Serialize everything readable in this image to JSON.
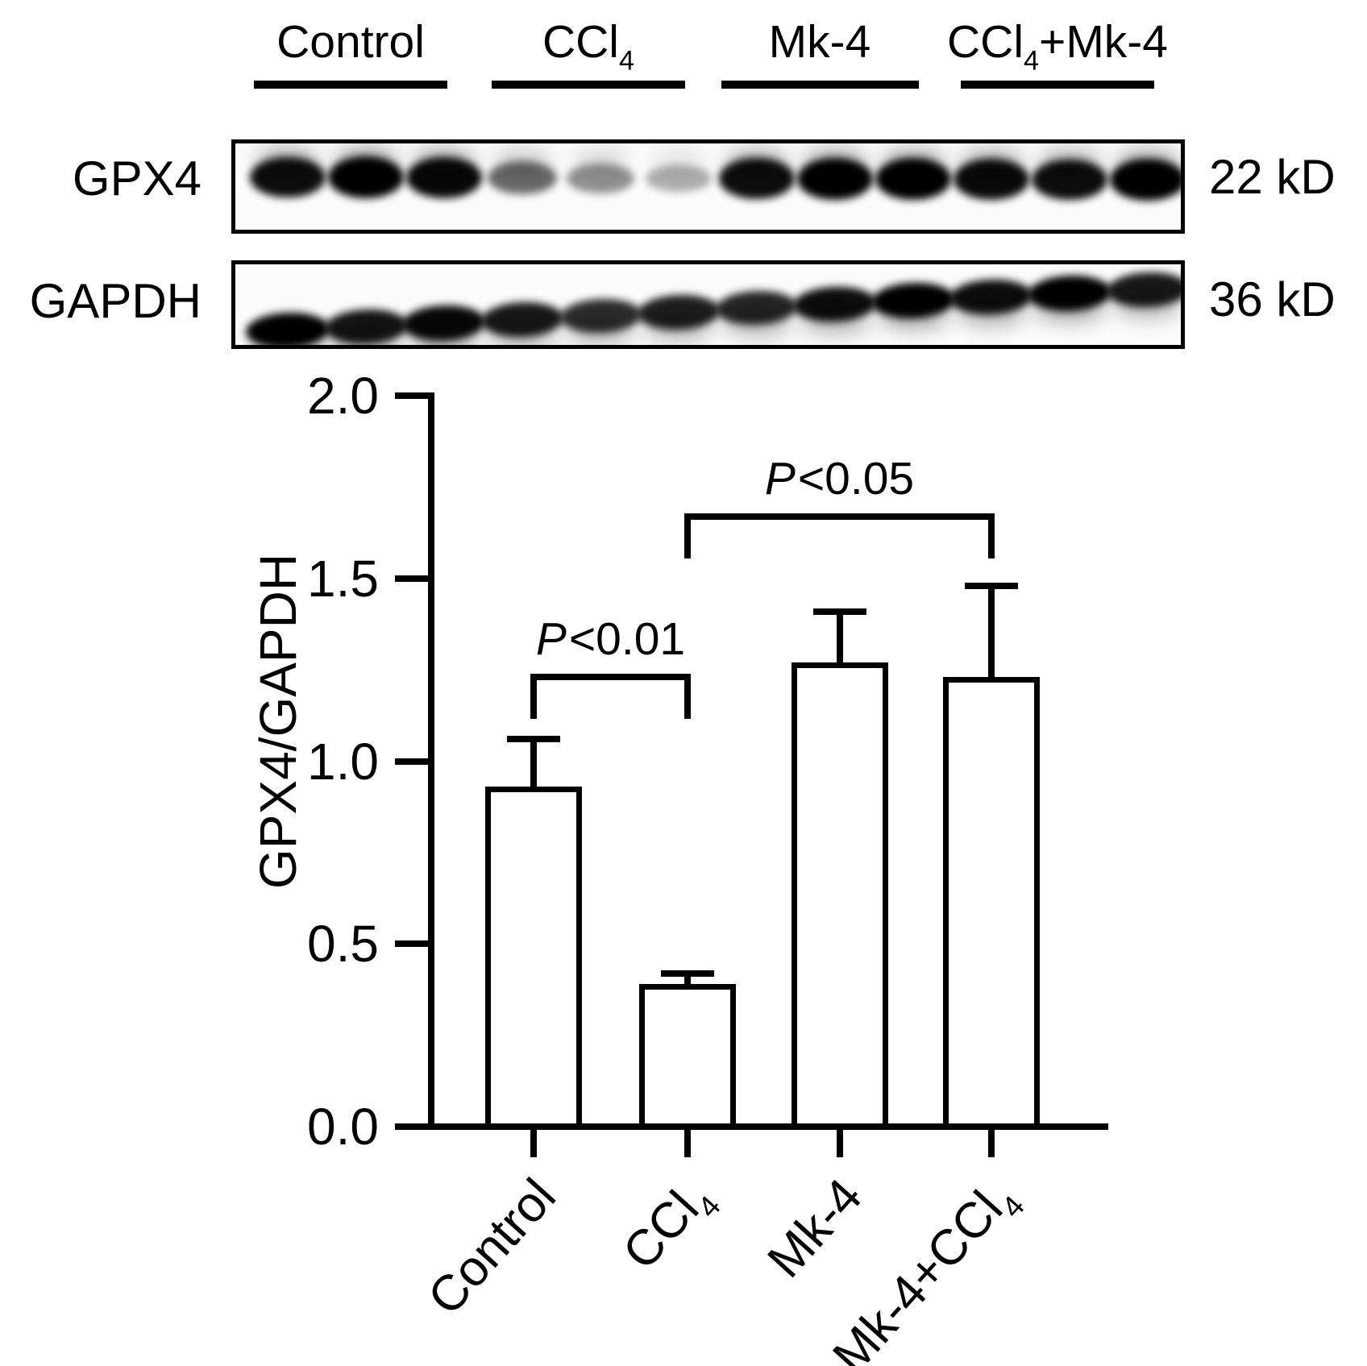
{
  "figure_header": {
    "groups": [
      {
        "text": "Control",
        "parts": [
          {
            "t": "Control"
          }
        ]
      },
      {
        "text": "CCl4",
        "parts": [
          {
            "t": "CCl"
          },
          {
            "t": "4",
            "sub": true
          }
        ]
      },
      {
        "text": "Mk-4",
        "parts": [
          {
            "t": "Mk-4"
          }
        ]
      },
      {
        "text": "CCl4+Mk-4",
        "parts": [
          {
            "t": "CCl"
          },
          {
            "t": "4",
            "sub": true
          },
          {
            "t": "+Mk-4"
          }
        ]
      }
    ]
  },
  "blots": [
    {
      "protein": "GPX4",
      "molecular_weight": "22 kD",
      "lanes_per_group": 3,
      "lane_intensities": [
        0.95,
        1.0,
        0.97,
        0.58,
        0.42,
        0.3,
        0.95,
        1.0,
        1.0,
        0.96,
        0.95,
        1.0
      ]
    },
    {
      "protein": "GAPDH",
      "molecular_weight": "36 kD",
      "lanes_per_group": 3,
      "lane_intensities": [
        1.0,
        0.92,
        0.97,
        0.9,
        0.82,
        0.88,
        0.85,
        0.95,
        1.0,
        0.95,
        1.0,
        0.9
      ]
    }
  ],
  "chart_data": {
    "type": "bar",
    "title": "",
    "ylabel": "GPX4/GAPDH",
    "xlabel": "",
    "ylim": [
      0.0,
      2.0
    ],
    "yticks": [
      0.0,
      0.5,
      1.0,
      1.5,
      2.0
    ],
    "ytick_labels": [
      "0.0",
      "0.5",
      "1.0",
      "1.5",
      "2.0"
    ],
    "categories": [
      "Control",
      "CCl4",
      "Mk-4",
      "Mk-4+CCl4"
    ],
    "category_parts": [
      [
        {
          "t": "Control"
        }
      ],
      [
        {
          "t": "CCl"
        },
        {
          "t": "4",
          "sub": true
        }
      ],
      [
        {
          "t": "Mk-4"
        }
      ],
      [
        {
          "t": "Mk-4+CCl"
        },
        {
          "t": "4",
          "sub": true
        }
      ]
    ],
    "values": [
      0.93,
      0.39,
      1.27,
      1.23
    ],
    "errors": [
      0.13,
      0.03,
      0.14,
      0.25
    ],
    "bar_fill": "#ffffff",
    "bar_border": "#000000",
    "grid": false,
    "legend": null,
    "significance": [
      {
        "text": "P<0.01",
        "parts": [
          {
            "t": "P",
            "italic": true
          },
          {
            "t": "<0.01"
          }
        ],
        "from": 0,
        "to": 1,
        "y": 1.23,
        "drop": 0.105
      },
      {
        "text": "P<0.05",
        "parts": [
          {
            "t": "P",
            "italic": true
          },
          {
            "t": "<0.05"
          }
        ],
        "from": 1,
        "to": 3,
        "y": 1.67,
        "drop": 0.106
      }
    ]
  }
}
